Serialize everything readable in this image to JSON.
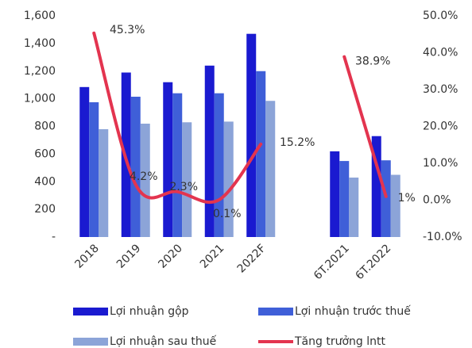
{
  "chart_data": {
    "type": "bar_line",
    "categories": [
      "2018",
      "2019",
      "2020",
      "2021",
      "2022F",
      null,
      "6T.2021",
      "6T.2022"
    ],
    "series": [
      {
        "name": "Lợi nhuận gộp",
        "color": "#1a1ad0",
        "values": [
          1085,
          1190,
          1120,
          1240,
          1470,
          null,
          620,
          730
        ]
      },
      {
        "name": "Lợi nhuận trước thuế",
        "color": "#3f5fd8",
        "values": [
          975,
          1015,
          1040,
          1040,
          1200,
          null,
          550,
          555
        ]
      },
      {
        "name": "Lợi nhuận sau thuế",
        "color": "#8ca4d8",
        "values": [
          780,
          820,
          830,
          835,
          985,
          null,
          430,
          450
        ]
      },
      {
        "name": "Tăng trưởng lntt",
        "color": "#e3344f",
        "axis": "y2",
        "type": "line",
        "values": [
          45.3,
          4.2,
          2.3,
          0.1,
          15.2,
          null,
          38.9,
          1
        ],
        "value_labels": [
          "45.3%",
          "4.2%",
          "2.3%",
          "0.1%",
          "15.2%",
          null,
          "38.9%",
          "1%"
        ]
      }
    ],
    "ylim": [
      0,
      1600
    ],
    "yticks": [
      {
        "value": 0,
        "label": "-"
      },
      200,
      400,
      600,
      800,
      {
        "value": 1000,
        "label": "1,000"
      },
      {
        "value": 1200,
        "label": "1,200"
      },
      {
        "value": 1400,
        "label": "1,400"
      },
      {
        "value": 1600,
        "label": "1,600"
      }
    ],
    "y2lim": [
      -10,
      50
    ],
    "y2ticks": [
      {
        "value": -10,
        "label": "-10.0%"
      },
      {
        "value": 0,
        "label": "0.0%"
      },
      {
        "value": 10,
        "label": "10.0%"
      },
      {
        "value": 20,
        "label": "20.0%"
      },
      {
        "value": 30,
        "label": "30.0%"
      },
      {
        "value": 40,
        "label": "40.0%"
      },
      {
        "value": 50,
        "label": "50.0%"
      }
    ],
    "grid": false,
    "legend": "bottom"
  }
}
